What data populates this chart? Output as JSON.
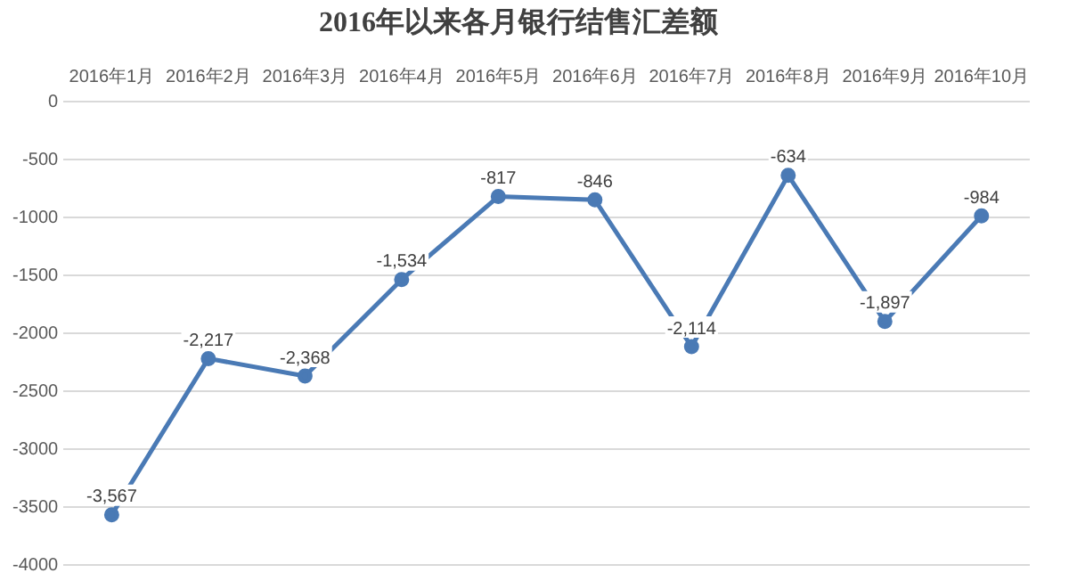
{
  "chart_data": {
    "type": "line",
    "title": "2016年以来各月银行结售汇差额",
    "categories": [
      "2016年1月",
      "2016年2月",
      "2016年3月",
      "2016年4月",
      "2016年5月",
      "2016年6月",
      "2016年7月",
      "2016年8月",
      "2016年9月",
      "2016年10月"
    ],
    "series": [
      {
        "color": "#4a7ab5",
        "values": [
          -3567,
          -2217,
          -2368,
          -1534,
          -817,
          -846,
          -2114,
          -634,
          -1897,
          -984
        ]
      }
    ],
    "value_labels": [
      "-3,567",
      "-2,217",
      "-2,368",
      "-1,534",
      "-817",
      "-846",
      "-2,114",
      "-634",
      "-1,897",
      "-984"
    ],
    "ylim": [
      -4000,
      0
    ],
    "yticks": [
      0,
      -500,
      -1000,
      -1500,
      -2000,
      -2500,
      -3000,
      -3500,
      -4000
    ],
    "grid": "y",
    "legend": false,
    "marker": "circle",
    "line_style": "solid"
  }
}
